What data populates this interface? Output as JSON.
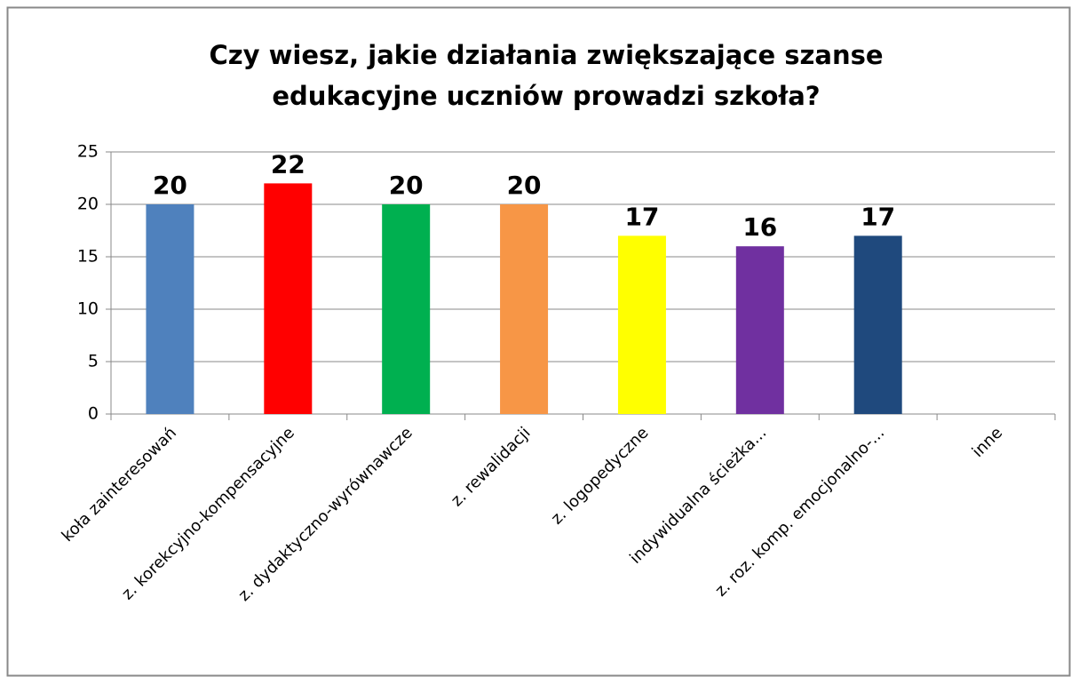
{
  "chart_data": {
    "type": "bar",
    "title": [
      "Czy wiesz, jakie działania zwiększające szanse",
      "edukacyjne uczniów prowadzi szkoła?"
    ],
    "categories": [
      "koła zainteresowań",
      "z. korekcyjno-kompensacyjne",
      "z. dydaktyczno-wyrównawcze",
      "z. rewalidacji",
      "z. logopedyczne",
      "indywidualna ścieżka...",
      "z. roz. komp. emocjonalno-...",
      "inne"
    ],
    "values": [
      20,
      22,
      20,
      20,
      17,
      16,
      17,
      null
    ],
    "colors": [
      "#4f81bd",
      "#ff0000",
      "#00b050",
      "#f79646",
      "#ffff00",
      "#7030a0",
      "#1f497d",
      "#1f497d"
    ],
    "ylim": [
      0,
      25
    ],
    "yticks": [
      0,
      5,
      10,
      15,
      20,
      25
    ],
    "grid": true,
    "data_labels": true
  }
}
